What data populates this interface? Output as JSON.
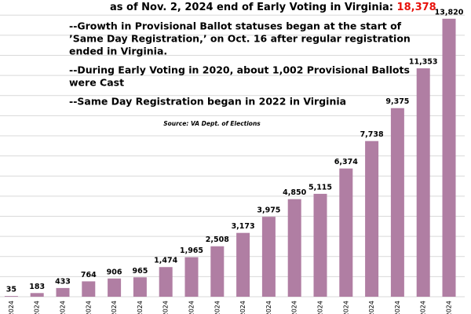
{
  "chart_data": {
    "type": "bar",
    "title": "as of Nov. 2, 2024 end of Early Voting in Virginia:",
    "total": 18378,
    "total_label": "18,378",
    "annotations": [
      [
        "--Growth in Provisional Ballot statuses began at the start of",
        "’Same Day Registration,’ on Oct. 16 after regular registration",
        "ended in Virginia."
      ],
      [
        "--During Early Voting in 2020, about 1,002 Provisional Ballots",
        "were Cast"
      ],
      [
        "--Same Day Registration began in 2022 in Virginia"
      ]
    ],
    "source": "Source: VA Dept. of Elections",
    "categories": [
      "/2024",
      "/2024",
      "/2024",
      "/2024",
      "/2024",
      "/2024",
      "/2024",
      "/2024",
      "/2024",
      "/2024",
      "/2024",
      "/2024",
      "/2024",
      "/2024",
      "/2024",
      "/2024",
      "/2024",
      "/2024"
    ],
    "values": [
      35,
      183,
      433,
      764,
      906,
      965,
      1474,
      1965,
      2508,
      3173,
      3975,
      4850,
      5115,
      6374,
      7738,
      9375,
      11353,
      13820
    ],
    "value_labels": [
      "35",
      "183",
      "433",
      "764",
      "906",
      "965",
      "1,474",
      "1,965",
      "2,508",
      "3,173",
      "3,975",
      "4,850",
      "5,115",
      "6,374",
      "7,738",
      "9,375",
      "11,353",
      "13,820"
    ],
    "color": "#b07ea3",
    "ylim": [
      0,
      14750
    ],
    "yticks": [
      0,
      1000,
      2000,
      3000,
      4000,
      5000,
      6000,
      7000,
      8000,
      9000,
      10000,
      11000,
      12000,
      13000,
      14000
    ],
    "grid": true
  }
}
